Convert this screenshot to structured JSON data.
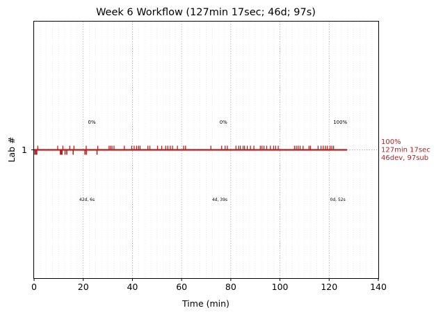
{
  "chart_data": {
    "type": "line",
    "title": "Week 6 Workflow (127min 17sec; 46d; 97s)",
    "xlabel": "Time (min)",
    "ylabel": "Lab #",
    "xlim": [
      0,
      140
    ],
    "ylim": [
      0,
      2
    ],
    "xticks": [
      0,
      20,
      40,
      60,
      80,
      100,
      120,
      140
    ],
    "yticks": [
      1
    ],
    "grid_major_x": [
      20,
      40,
      60,
      80,
      100,
      120
    ],
    "grid_minor_x": [
      2.5,
      5,
      7.5,
      10,
      12.5,
      15,
      17.5,
      22.5,
      25,
      27.5,
      30,
      32.5,
      35,
      37.5,
      42.5,
      45,
      47.5,
      50,
      52.5,
      55,
      57.5,
      62.5,
      65,
      67.5,
      70,
      72.5,
      75,
      77.5,
      82.5,
      85,
      87.5,
      90,
      92.5,
      95,
      97.5,
      102.5,
      105,
      107.5,
      110,
      112.5,
      115,
      117.5,
      122.5,
      125,
      127.5,
      130,
      132.5,
      135,
      137.5
    ],
    "series": [
      {
        "color": "#b22222",
        "progress_line": {
          "x": [
            0,
            127.28
          ],
          "y": [
            1,
            1
          ]
        },
        "dotted_extension": {
          "x": [
            127.28,
            140
          ],
          "y": [
            1,
            1
          ]
        },
        "marks_up": [
          1.5,
          9.6,
          11.7,
          14.5,
          16.2,
          21.2,
          25.9,
          30.5,
          31.1,
          31.7,
          32.5,
          36.7,
          39.7,
          40.7,
          41.7,
          42.5,
          43.1,
          46.3,
          47.1,
          50.2,
          51.9,
          53.5,
          54.4,
          55.4,
          56.3,
          58.3,
          60.8,
          61.6,
          71.9,
          76.3,
          77.7,
          78.6,
          82.1,
          83.2,
          83.9,
          85.0,
          85.6,
          86.7,
          88.0,
          89.4,
          92.0,
          92.7,
          93.5,
          94.6,
          96.1,
          97.4,
          98.2,
          99.3,
          105.9,
          106.6,
          107.4,
          108.2,
          109.4,
          111.8,
          112.4,
          115.5,
          116.7,
          117.6,
          118.5,
          119.3,
          120.4,
          121.1,
          121.8
        ],
        "marks_down": [
          0.3,
          0.8,
          1.1,
          10.7,
          11.1,
          11.4,
          12.6,
          13.3,
          15.9,
          20.7,
          21.3,
          25.6
        ]
      }
    ],
    "annotations_top": [
      {
        "x": 23.5,
        "text": "0%"
      },
      {
        "x": 77.0,
        "text": "0%"
      },
      {
        "x": 124.5,
        "text": "100%"
      }
    ],
    "annotations_bottom": [
      {
        "x": 21.5,
        "text": "42d, 6s"
      },
      {
        "x": 75.5,
        "text": "4d, 39s"
      },
      {
        "x": 123.5,
        "text": "0d, 52s"
      }
    ],
    "right_label": [
      "100%",
      "127min 17sec",
      "46dev, 97sub"
    ]
  }
}
